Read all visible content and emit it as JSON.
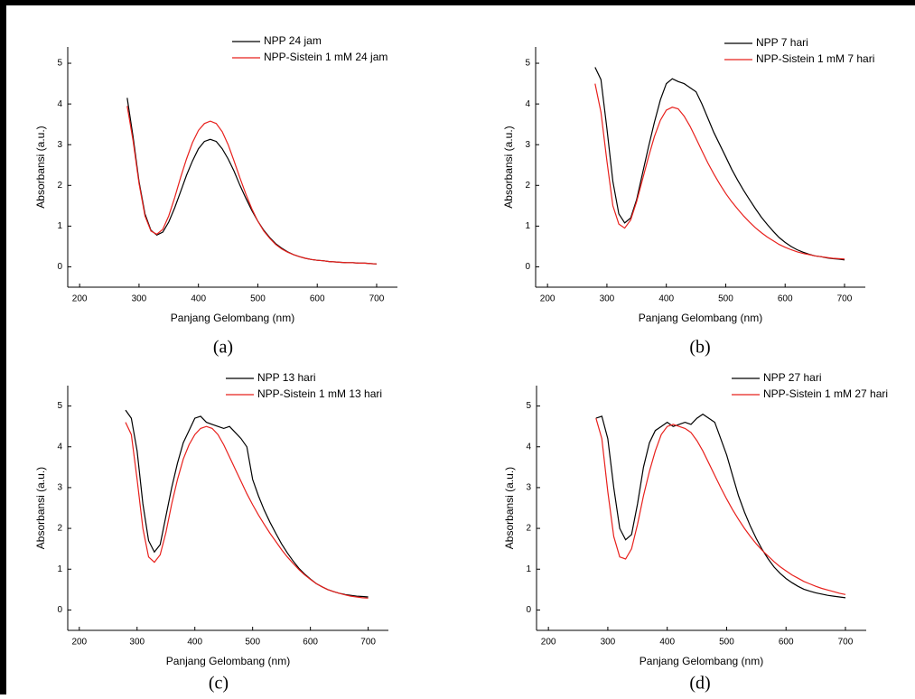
{
  "chart_data": [
    {
      "type": "line",
      "caption": "(a)",
      "xlabel": "Panjang Gelombang (nm)",
      "ylabel": "Absorbansi (a.u.)",
      "legend": "top-right",
      "x": [
        280,
        290,
        300,
        310,
        320,
        330,
        340,
        350,
        360,
        370,
        380,
        390,
        400,
        410,
        420,
        430,
        440,
        450,
        460,
        470,
        480,
        490,
        500,
        510,
        520,
        530,
        540,
        550,
        560,
        570,
        580,
        590,
        600,
        610,
        620,
        630,
        640,
        650,
        660,
        670,
        680,
        690,
        700
      ],
      "xlim": [
        180,
        735
      ],
      "ylim": [
        -0.5,
        5.4
      ],
      "xticks": [
        200,
        300,
        400,
        500,
        600,
        700
      ],
      "yticks": [
        0,
        1,
        2,
        3,
        4,
        5
      ],
      "series": [
        {
          "name": "NPP 24 jam",
          "color": "#000000",
          "values": [
            4.15,
            3.2,
            2.1,
            1.3,
            0.9,
            0.78,
            0.85,
            1.1,
            1.45,
            1.85,
            2.25,
            2.6,
            2.9,
            3.08,
            3.13,
            3.08,
            2.9,
            2.65,
            2.35,
            2.0,
            1.68,
            1.38,
            1.12,
            0.9,
            0.72,
            0.57,
            0.46,
            0.37,
            0.3,
            0.25,
            0.21,
            0.18,
            0.16,
            0.15,
            0.13,
            0.12,
            0.11,
            0.1,
            0.1,
            0.09,
            0.09,
            0.08,
            0.07
          ]
        },
        {
          "name": "NPP-Sistein 1 mM 24 jam",
          "color": "#e8201c",
          "values": [
            3.95,
            3.1,
            2.05,
            1.25,
            0.88,
            0.8,
            0.92,
            1.25,
            1.7,
            2.2,
            2.65,
            3.05,
            3.35,
            3.52,
            3.58,
            3.52,
            3.32,
            3.0,
            2.6,
            2.18,
            1.78,
            1.42,
            1.12,
            0.88,
            0.7,
            0.55,
            0.44,
            0.36,
            0.3,
            0.25,
            0.21,
            0.18,
            0.16,
            0.15,
            0.13,
            0.12,
            0.11,
            0.1,
            0.1,
            0.09,
            0.09,
            0.08,
            0.07
          ]
        }
      ]
    },
    {
      "type": "line",
      "caption": "(b)",
      "xlabel": "Panjang Gelombang (nm)",
      "ylabel": "Absorbansi (a.u.)",
      "legend": "top-right",
      "x": [
        280,
        290,
        300,
        310,
        320,
        330,
        340,
        350,
        360,
        370,
        380,
        390,
        400,
        410,
        420,
        430,
        440,
        450,
        460,
        470,
        480,
        490,
        500,
        510,
        520,
        530,
        540,
        550,
        560,
        570,
        580,
        590,
        600,
        610,
        620,
        630,
        640,
        650,
        660,
        670,
        680,
        690,
        700
      ],
      "xlim": [
        180,
        735
      ],
      "ylim": [
        -0.5,
        5.4
      ],
      "xticks": [
        200,
        300,
        400,
        500,
        600,
        700
      ],
      "yticks": [
        0,
        1,
        2,
        3,
        4,
        5
      ],
      "series": [
        {
          "name": "NPP 7 hari",
          "color": "#000000",
          "values": [
            4.9,
            4.6,
            3.4,
            2.1,
            1.3,
            1.08,
            1.2,
            1.65,
            2.3,
            2.95,
            3.55,
            4.1,
            4.5,
            4.62,
            4.55,
            4.5,
            4.4,
            4.3,
            4.0,
            3.65,
            3.3,
            3.0,
            2.7,
            2.4,
            2.13,
            1.88,
            1.65,
            1.43,
            1.22,
            1.04,
            0.87,
            0.72,
            0.6,
            0.5,
            0.42,
            0.36,
            0.31,
            0.27,
            0.25,
            0.22,
            0.2,
            0.19,
            0.17
          ]
        },
        {
          "name": "NPP-Sistein 1 mM 7 hari",
          "color": "#e8201c",
          "values": [
            4.5,
            3.8,
            2.6,
            1.5,
            1.05,
            0.95,
            1.15,
            1.6,
            2.15,
            2.7,
            3.2,
            3.6,
            3.85,
            3.92,
            3.88,
            3.7,
            3.45,
            3.15,
            2.85,
            2.55,
            2.28,
            2.03,
            1.8,
            1.6,
            1.42,
            1.25,
            1.1,
            0.96,
            0.84,
            0.73,
            0.64,
            0.55,
            0.48,
            0.42,
            0.37,
            0.33,
            0.3,
            0.27,
            0.25,
            0.23,
            0.21,
            0.2,
            0.19
          ]
        }
      ]
    },
    {
      "type": "line",
      "caption": "(c)",
      "xlabel": "Panjang Gelombang (nm)",
      "ylabel": "Absorbansi (a.u.)",
      "legend": "top-right",
      "x": [
        280,
        290,
        300,
        310,
        320,
        330,
        340,
        350,
        360,
        370,
        380,
        390,
        400,
        410,
        420,
        430,
        440,
        450,
        460,
        470,
        480,
        490,
        500,
        510,
        520,
        530,
        540,
        550,
        560,
        570,
        580,
        590,
        600,
        610,
        620,
        630,
        640,
        650,
        660,
        670,
        680,
        690,
        700
      ],
      "xlim": [
        180,
        735
      ],
      "ylim": [
        -0.5,
        5.5
      ],
      "xticks": [
        200,
        300,
        400,
        500,
        600,
        700
      ],
      "yticks": [
        0,
        1,
        2,
        3,
        4,
        5
      ],
      "series": [
        {
          "name": "NPP 13 hari",
          "color": "#000000",
          "values": [
            4.9,
            4.7,
            3.9,
            2.6,
            1.7,
            1.42,
            1.6,
            2.3,
            3.0,
            3.6,
            4.1,
            4.4,
            4.7,
            4.75,
            4.6,
            4.55,
            4.5,
            4.45,
            4.5,
            4.35,
            4.2,
            4.0,
            3.2,
            2.8,
            2.45,
            2.15,
            1.88,
            1.62,
            1.4,
            1.2,
            1.02,
            0.88,
            0.76,
            0.65,
            0.57,
            0.5,
            0.45,
            0.41,
            0.38,
            0.36,
            0.34,
            0.33,
            0.32
          ]
        },
        {
          "name": "NPP-Sistein 1 mM 13 hari",
          "color": "#e8201c",
          "values": [
            4.6,
            4.3,
            3.2,
            2.0,
            1.3,
            1.17,
            1.35,
            1.9,
            2.6,
            3.2,
            3.7,
            4.05,
            4.3,
            4.45,
            4.5,
            4.45,
            4.3,
            4.05,
            3.75,
            3.45,
            3.15,
            2.85,
            2.58,
            2.33,
            2.1,
            1.88,
            1.68,
            1.48,
            1.3,
            1.14,
            0.99,
            0.86,
            0.75,
            0.65,
            0.57,
            0.5,
            0.45,
            0.41,
            0.37,
            0.34,
            0.32,
            0.3,
            0.29
          ]
        }
      ]
    },
    {
      "type": "line",
      "caption": "(d)",
      "xlabel": "Panjang Gelombang (nm)",
      "ylabel": "Absorbansi (a.u.)",
      "legend": "top-right",
      "x": [
        280,
        290,
        300,
        310,
        320,
        330,
        340,
        350,
        360,
        370,
        380,
        390,
        400,
        410,
        420,
        430,
        440,
        450,
        460,
        470,
        480,
        490,
        500,
        510,
        520,
        530,
        540,
        550,
        560,
        570,
        580,
        590,
        600,
        610,
        620,
        630,
        640,
        650,
        660,
        670,
        680,
        690,
        700
      ],
      "xlim": [
        180,
        735
      ],
      "ylim": [
        -0.5,
        5.5
      ],
      "xticks": [
        200,
        300,
        400,
        500,
        600,
        700
      ],
      "yticks": [
        0,
        1,
        2,
        3,
        4,
        5
      ],
      "series": [
        {
          "name": "NPP 27 hari",
          "color": "#000000",
          "values": [
            4.7,
            4.75,
            4.2,
            3.0,
            2.0,
            1.72,
            1.85,
            2.6,
            3.5,
            4.1,
            4.4,
            4.5,
            4.6,
            4.5,
            4.55,
            4.6,
            4.55,
            4.7,
            4.8,
            4.7,
            4.6,
            4.2,
            3.8,
            3.3,
            2.8,
            2.4,
            2.05,
            1.75,
            1.48,
            1.25,
            1.05,
            0.9,
            0.77,
            0.67,
            0.58,
            0.51,
            0.46,
            0.42,
            0.39,
            0.36,
            0.34,
            0.32,
            0.3
          ]
        },
        {
          "name": "NPP-Sistein 1 mM 27 hari",
          "color": "#e8201c",
          "values": [
            4.7,
            4.2,
            2.9,
            1.8,
            1.3,
            1.25,
            1.5,
            2.1,
            2.8,
            3.4,
            3.9,
            4.3,
            4.5,
            4.55,
            4.5,
            4.45,
            4.35,
            4.15,
            3.9,
            3.6,
            3.3,
            3.0,
            2.72,
            2.46,
            2.22,
            2.0,
            1.8,
            1.62,
            1.46,
            1.32,
            1.18,
            1.06,
            0.96,
            0.86,
            0.78,
            0.7,
            0.64,
            0.58,
            0.53,
            0.49,
            0.45,
            0.41,
            0.38
          ]
        }
      ]
    }
  ]
}
